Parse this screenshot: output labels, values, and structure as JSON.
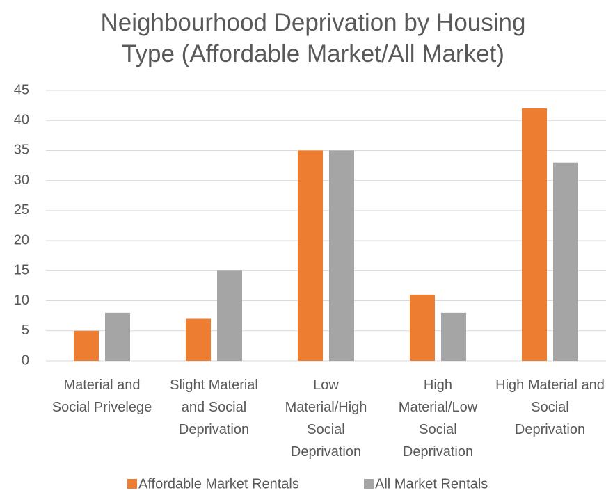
{
  "chart_data": {
    "type": "bar",
    "title": "Neighbourhood Deprivation by Housing Type (Affordable Market/All Market)",
    "categories": [
      "Material and Social Privelege",
      "Slight Material and Social Deprivation",
      "Low Material/High Social Deprivation",
      "High Material/Low Social Deprivation",
      "High Material and Social Deprivation"
    ],
    "series": [
      {
        "name": "Affordable Market Rentals",
        "color": "#ed7d31",
        "values": [
          5,
          7,
          35,
          11,
          42
        ]
      },
      {
        "name": "All Market Rentals",
        "color": "#a5a5a5",
        "values": [
          8,
          15,
          35,
          8,
          33
        ]
      }
    ],
    "ylim": [
      0,
      45
    ],
    "yticks": [
      0,
      5,
      10,
      15,
      20,
      25,
      30,
      35,
      40,
      45
    ],
    "grid": true,
    "legend": "bottom"
  }
}
